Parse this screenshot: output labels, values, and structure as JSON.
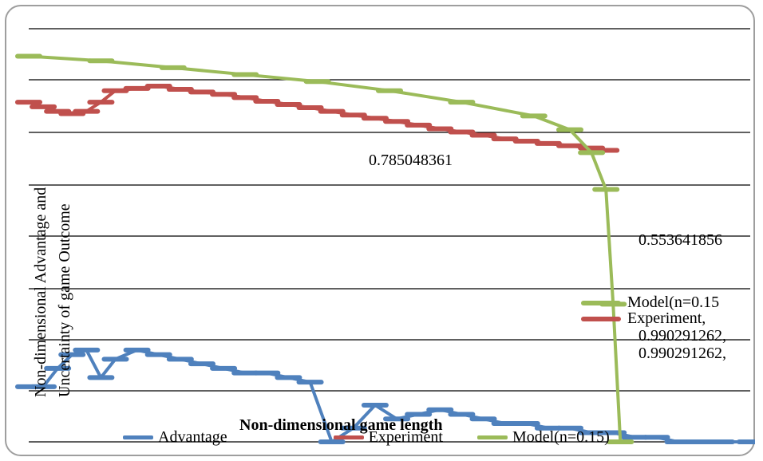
{
  "chart_data": {
    "type": "line",
    "title": "",
    "xlabel": "Non-dimensional game length",
    "ylabel": [
      "Non-dimensional Advantage and",
      "Uncertainty of game Outcome"
    ],
    "grid": true,
    "legend_position": "bottom",
    "series": [
      {
        "name": "Advantage",
        "color": "#4f81bd",
        "x": [
          0.0,
          0.02,
          0.04,
          0.06,
          0.08,
          0.1,
          0.12,
          0.15,
          0.18,
          0.21,
          0.24,
          0.27,
          0.3,
          0.33,
          0.36,
          0.39,
          0.42,
          0.45,
          0.48,
          0.51,
          0.54,
          0.57,
          0.6,
          0.63,
          0.66,
          0.69,
          0.72,
          0.75,
          0.78,
          0.81,
          0.84,
          0.87,
          0.9,
          0.93,
          0.96,
          1.0
        ],
        "y": [
          0.12,
          0.12,
          0.16,
          0.19,
          0.2,
          0.14,
          0.18,
          0.2,
          0.19,
          0.18,
          0.17,
          0.16,
          0.15,
          0.15,
          0.14,
          0.13,
          0.0,
          0.03,
          0.08,
          0.05,
          0.06,
          0.07,
          0.06,
          0.05,
          0.04,
          0.04,
          0.03,
          0.03,
          0.02,
          0.02,
          0.01,
          0.01,
          0.0,
          0.0,
          0.0,
          0.0
        ]
      },
      {
        "name": "Experiment",
        "color": "#c0504d",
        "x": [
          0.0,
          0.02,
          0.04,
          0.06,
          0.08,
          0.1,
          0.12,
          0.15,
          0.18,
          0.21,
          0.24,
          0.27,
          0.3,
          0.33,
          0.36,
          0.39,
          0.42,
          0.45,
          0.48,
          0.51,
          0.54,
          0.57,
          0.6,
          0.63,
          0.66,
          0.69,
          0.72,
          0.75,
          0.78,
          0.8
        ],
        "y": [
          0.74,
          0.73,
          0.72,
          0.715,
          0.72,
          0.74,
          0.765,
          0.77,
          0.775,
          0.768,
          0.762,
          0.757,
          0.75,
          0.742,
          0.735,
          0.728,
          0.72,
          0.712,
          0.705,
          0.698,
          0.69,
          0.682,
          0.675,
          0.668,
          0.66,
          0.655,
          0.65,
          0.645,
          0.64,
          0.635
        ]
      },
      {
        "name": "Model(n=0.15)",
        "color": "#9bbb59",
        "x": [
          0.0,
          0.1,
          0.2,
          0.3,
          0.4,
          0.5,
          0.6,
          0.7,
          0.75,
          0.78,
          0.8,
          0.81,
          0.82
        ],
        "y": [
          0.84,
          0.83,
          0.815,
          0.8,
          0.785,
          0.765,
          0.74,
          0.71,
          0.68,
          0.63,
          0.55,
          0.3,
          0.0
        ]
      }
    ],
    "ylim": [
      0,
      0.9
    ],
    "xlim": [
      0,
      1
    ],
    "annotations": [
      "Model(n=0.15",
      "Experiment,",
      "0.990291262,",
      "0.990291262,",
      "0.553641856",
      "0.785048361"
    ]
  }
}
